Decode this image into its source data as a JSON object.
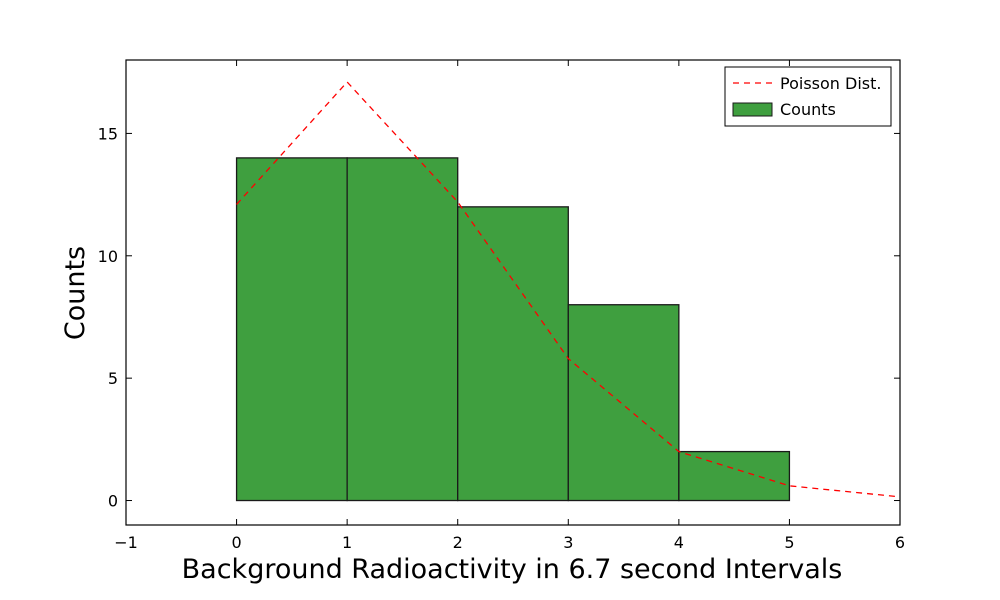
{
  "chart_data": {
    "type": "bar",
    "title": "",
    "xlabel": "Background Radioactivity in 6.7 second Intervals",
    "ylabel": "Counts",
    "xlim": [
      -1,
      6
    ],
    "ylim": [
      -1,
      18
    ],
    "xticks": [
      -1,
      0,
      1,
      2,
      3,
      4,
      5,
      6
    ],
    "xtick_labels": [
      "−1",
      "0",
      "1",
      "2",
      "3",
      "4",
      "5",
      "6"
    ],
    "yticks": [
      0,
      5,
      10,
      15
    ],
    "ytick_labels": [
      "0",
      "5",
      "10",
      "15"
    ],
    "grid": false,
    "legend_position": "top-right",
    "series": [
      {
        "name": "Counts",
        "kind": "histogram",
        "color": "#3f9f3f",
        "edge_color": "#1a1a1a",
        "bins": [
          [
            0,
            1
          ],
          [
            1,
            2
          ],
          [
            2,
            3
          ],
          [
            3,
            4
          ],
          [
            4,
            5
          ]
        ],
        "values": [
          14,
          14,
          12,
          8,
          2
        ]
      },
      {
        "name": "Poisson Dist.",
        "kind": "line",
        "style": "dashed",
        "color": "#ff0000",
        "x": [
          0,
          1,
          2,
          3,
          4,
          5,
          6
        ],
        "y": [
          12.1,
          17.1,
          12.2,
          5.8,
          2.0,
          0.6,
          0.15
        ]
      }
    ]
  }
}
